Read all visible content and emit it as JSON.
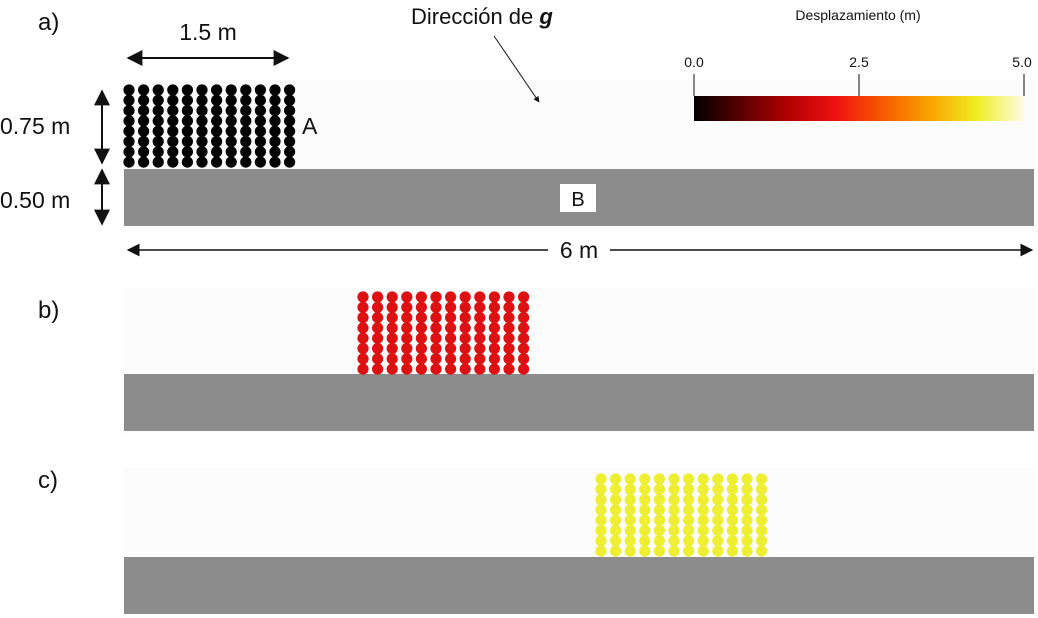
{
  "panels": [
    {
      "letter": "a)",
      "dot_color": "#000000"
    },
    {
      "letter": "b)",
      "dot_color": "#dd1111"
    },
    {
      "letter": "c)",
      "dot_color": "#eeee33"
    }
  ],
  "grid": {
    "rows": 8,
    "cols": 12
  },
  "annotations": {
    "width_label": "1.5 m",
    "block_height_label": "0.75 m",
    "slab_height_label": "0.50 m",
    "length_label": "6 m",
    "block_label": "A",
    "slab_label": "B",
    "gravity_label_prefix": "Dirección de ",
    "gravity_symbol": "g"
  },
  "colorbar": {
    "title": "Desplazamiento (m)",
    "ticks": [
      "0.0",
      "2.5",
      "5.0"
    ],
    "stops": [
      "#000000",
      "#5a0000",
      "#b30000",
      "#ee1111",
      "#f65a00",
      "#f9a400",
      "#eeee22",
      "#fdfde6"
    ]
  },
  "colors": {
    "slab": "#8c8c8c",
    "panel_bg": "#fcfcfc"
  }
}
